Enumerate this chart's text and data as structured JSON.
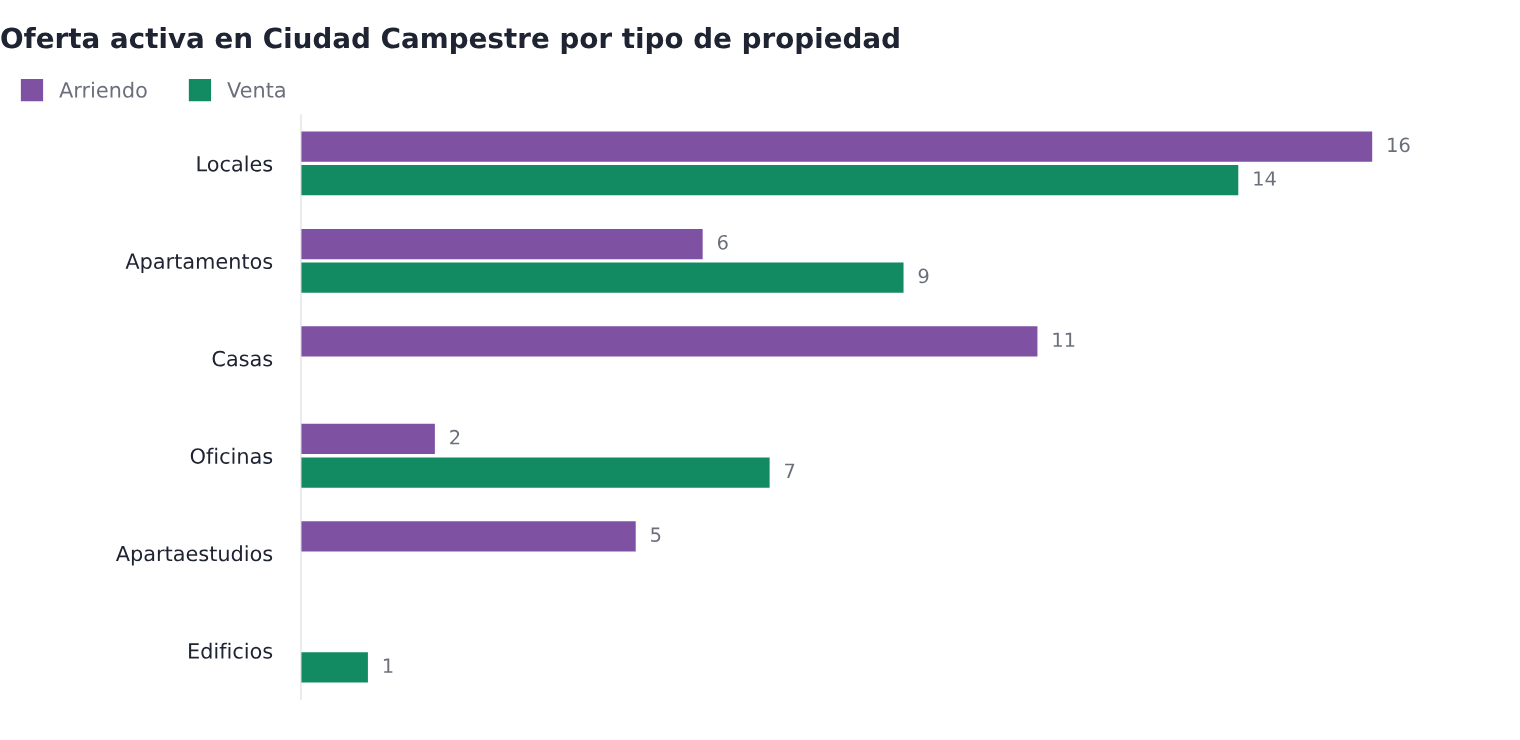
{
  "chart_data": {
    "type": "bar",
    "orientation": "horizontal",
    "title": "Oferta activa en Ciudad Campestre por tipo de propiedad",
    "categories": [
      "Locales",
      "Apartamentos",
      "Casas",
      "Oficinas",
      "Apartaestudios",
      "Edificios"
    ],
    "series": [
      {
        "name": "Arriendo",
        "color": "#7e51a3",
        "values": [
          16,
          6,
          11,
          2,
          5,
          null
        ]
      },
      {
        "name": "Venta",
        "color": "#128a62",
        "values": [
          14,
          9,
          null,
          7,
          null,
          1
        ]
      }
    ],
    "data_labels": true,
    "legend": "top left",
    "grid": false,
    "tick_labels": "y"
  }
}
